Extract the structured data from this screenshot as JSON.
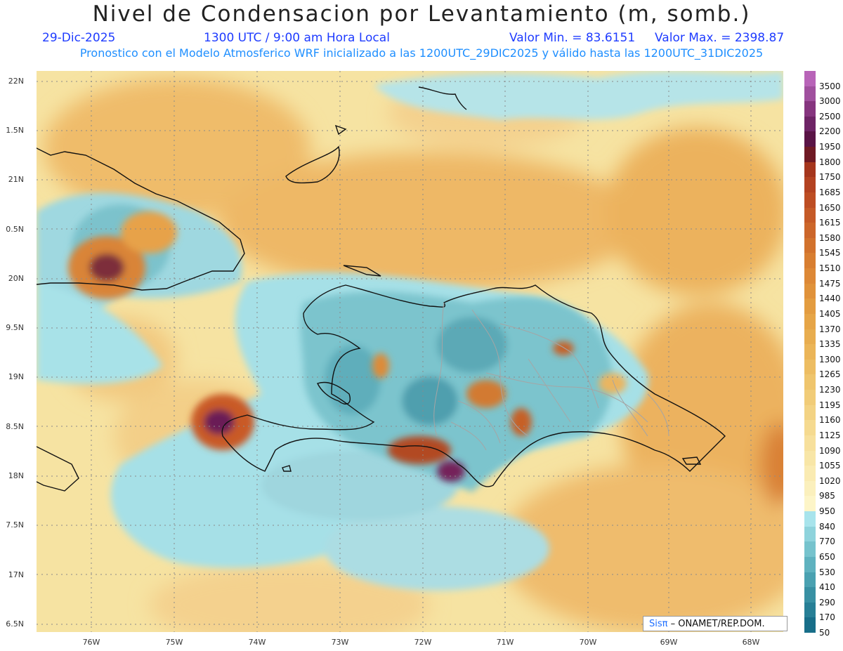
{
  "header": {
    "title": "Nivel de Condensacion por Levantamiento (m, somb.)",
    "date": "29-Dic-2025",
    "time": "1300 UTC / 9:00 am Hora Local",
    "vmin": "Valor Min. = 83.6151",
    "vmax": "Valor Max. = 2398.87",
    "forecast": "Pronostico con el Modelo Atmosferico WRF inicializado a las 1200UTC_29DIC2025 y válido hasta las  1200UTC_31DIC2025"
  },
  "map": {
    "lat_labels": [
      "22N",
      "1.5N",
      "21N",
      "0.5N",
      "20N",
      "9.5N",
      "19N",
      "8.5N",
      "18N",
      "7.5N",
      "17N",
      "6.5N"
    ],
    "lon_labels": [
      "76W",
      "75W",
      "74W",
      "73W",
      "72W",
      "71W",
      "70W",
      "69W",
      "68W"
    ]
  },
  "colorbar": {
    "labels": [
      "3500",
      "3000",
      "2500",
      "2200",
      "1950",
      "1800",
      "1750",
      "1685",
      "1650",
      "1615",
      "1580",
      "1545",
      "1510",
      "1475",
      "1440",
      "1405",
      "1370",
      "1335",
      "1300",
      "1265",
      "1230",
      "1195",
      "1160",
      "1125",
      "1090",
      "1055",
      "1020",
      "985",
      "950",
      "840",
      "770",
      "650",
      "530",
      "410",
      "290",
      "170",
      "50"
    ],
    "colors": [
      "#b864b8",
      "#a0509e",
      "#86357f",
      "#6e2466",
      "#5a1446",
      "#6f1a24",
      "#a5361d",
      "#b34221",
      "#bd4d23",
      "#c55a27",
      "#cc662a",
      "#d2722d",
      "#d87e31",
      "#dd8836",
      "#e0923a",
      "#e39c40",
      "#e6a547",
      "#e8ad4f",
      "#ebb558",
      "#edbd62",
      "#efc56d",
      "#f1cc78",
      "#f3d384",
      "#f5da90",
      "#f7e09c",
      "#f8e6a7",
      "#faebb2",
      "#fbf0bd",
      "#fdf5c8",
      "#a8e4ec",
      "#8ed3dc",
      "#76c3cd",
      "#5fb2bf",
      "#4aa1b1",
      "#3890a3",
      "#277f96",
      "#186e89"
    ]
  },
  "logo": {
    "brand": "Sisπ",
    "text": " – ONAMET/REP.DOM."
  }
}
